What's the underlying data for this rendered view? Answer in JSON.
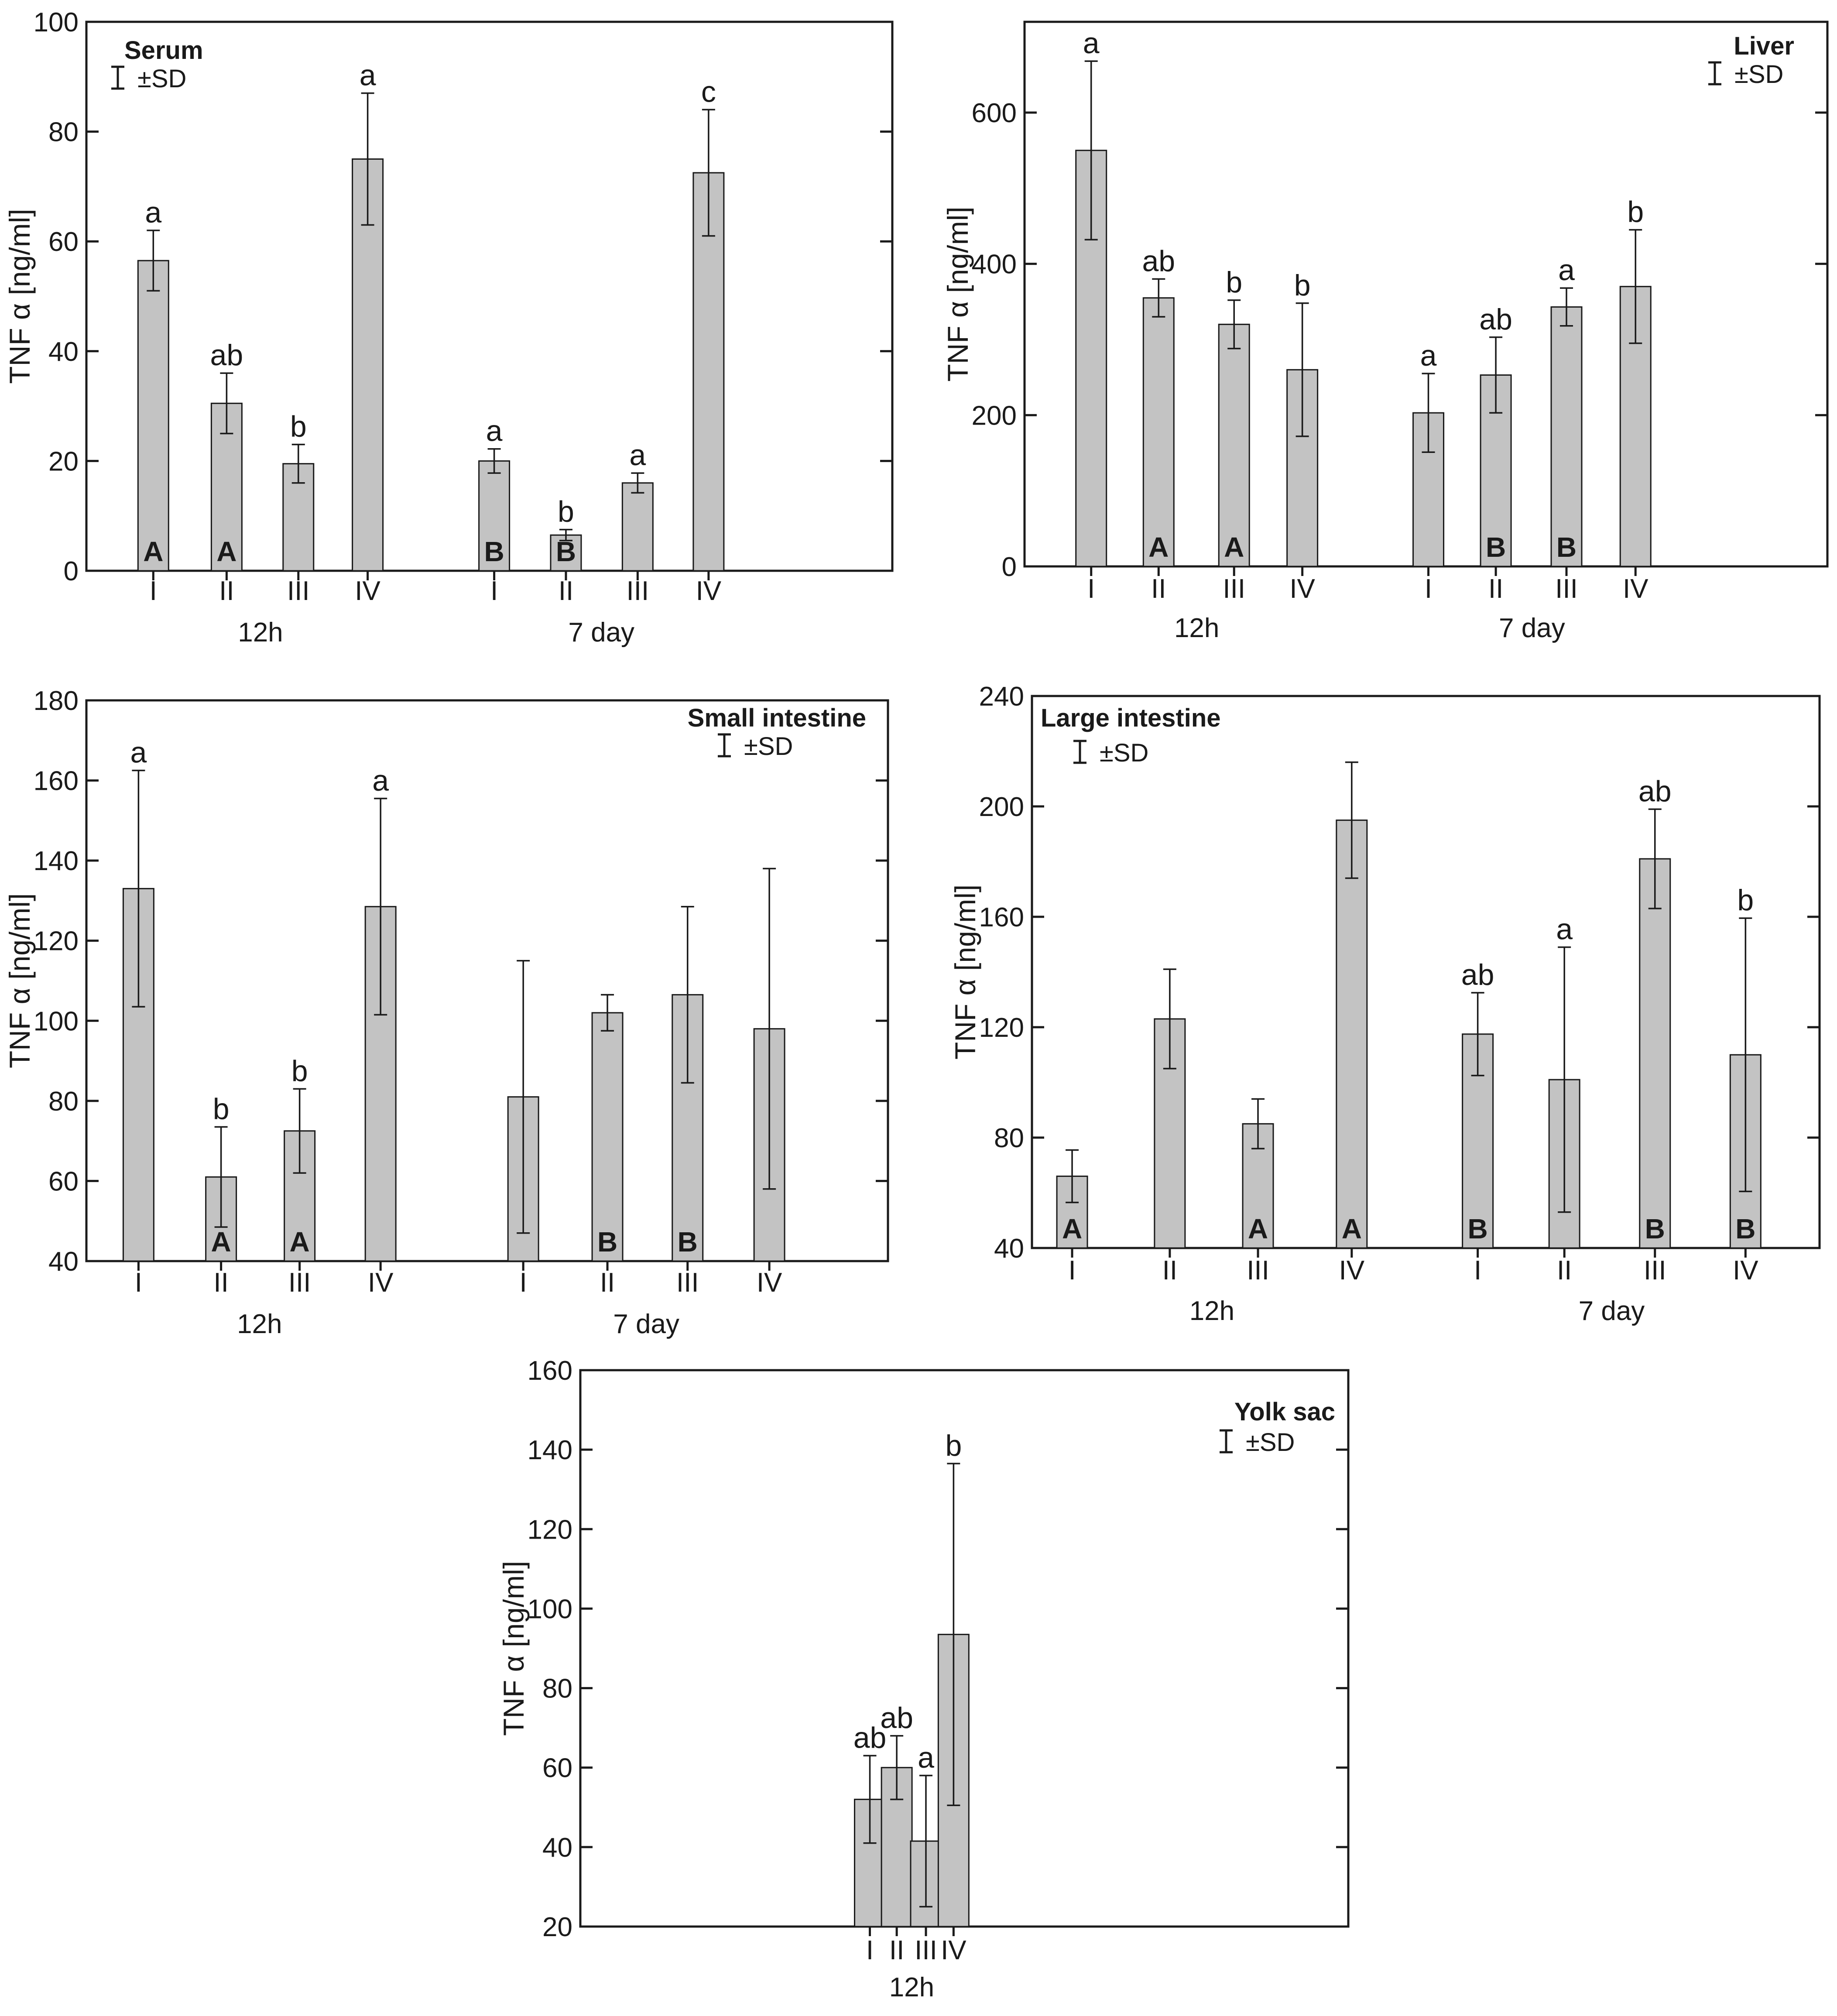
{
  "legend_sd_label": "±SD",
  "colors": {
    "bar_fill": "#c3c3c3",
    "stroke": "#1a1a1a",
    "background": "#ffffff"
  },
  "chart_data": [
    {
      "id": "serum",
      "type": "bar",
      "title": "Serum",
      "ylabel": "TNF α [ng/ml]",
      "ylim": [
        0,
        100
      ],
      "yticks": [
        0,
        20,
        40,
        60,
        80,
        100
      ],
      "groups": [
        {
          "label": "12h",
          "categories": [
            "I",
            "II",
            "III",
            "IV"
          ],
          "values": [
            56.5,
            30.5,
            19.5,
            75
          ],
          "sd": [
            5.5,
            5.5,
            3.5,
            12
          ],
          "letters": [
            "a",
            "ab",
            "b",
            "a"
          ],
          "caps": [
            "A",
            "A",
            "",
            ""
          ]
        },
        {
          "label": "7 day",
          "categories": [
            "I",
            "II",
            "III",
            "IV"
          ],
          "values": [
            20,
            6.5,
            16,
            72.5
          ],
          "sd": [
            2.2,
            1,
            1.8,
            11.5
          ],
          "letters": [
            "a",
            "b",
            "a",
            "c"
          ],
          "caps": [
            "B",
            "B",
            "",
            ""
          ]
        }
      ]
    },
    {
      "id": "liver",
      "type": "bar",
      "title": "Liver",
      "ylabel": "TNF α [ng/ml]",
      "ylim": [
        0,
        720
      ],
      "yticks": [
        0,
        200,
        400,
        600
      ],
      "groups": [
        {
          "label": "12h",
          "categories": [
            "I",
            "II",
            "III",
            "IV"
          ],
          "values": [
            550,
            355,
            320,
            260
          ],
          "sd": [
            118,
            25,
            32,
            88
          ],
          "letters": [
            "a",
            "ab",
            "b",
            "b"
          ],
          "caps": [
            "",
            "A",
            "A",
            ""
          ]
        },
        {
          "label": "7 day",
          "categories": [
            "I",
            "II",
            "III",
            "IV"
          ],
          "values": [
            203,
            253,
            343,
            370
          ],
          "sd": [
            52,
            50,
            25,
            75
          ],
          "letters": [
            "a",
            "ab",
            "a",
            "b"
          ],
          "caps": [
            "",
            "B",
            "B",
            ""
          ]
        }
      ]
    },
    {
      "id": "small-intestine",
      "type": "bar",
      "title": "Small intestine",
      "ylabel": "TNF α [ng/ml]",
      "ylim": [
        40,
        180
      ],
      "yticks": [
        40,
        60,
        80,
        100,
        120,
        140,
        160,
        180
      ],
      "groups": [
        {
          "label": "12h",
          "categories": [
            "I",
            "II",
            "III",
            "IV"
          ],
          "values": [
            133,
            61,
            72.5,
            128.5
          ],
          "sd": [
            29.5,
            12.5,
            10.5,
            27
          ],
          "letters": [
            "a",
            "b",
            "b",
            "a"
          ],
          "caps": [
            "",
            "A",
            "A",
            ""
          ]
        },
        {
          "label": "7 day",
          "categories": [
            "I",
            "II",
            "III",
            "IV"
          ],
          "values": [
            81,
            102,
            106.5,
            98
          ],
          "sd": [
            34,
            4.5,
            22,
            40
          ],
          "letters": [
            "",
            "",
            "",
            ""
          ],
          "caps": [
            "",
            "B",
            "B",
            ""
          ]
        }
      ]
    },
    {
      "id": "large-intestine",
      "type": "bar",
      "title": "Large intestine",
      "ylabel": "TNF α [ng/ml]",
      "ylim": [
        40,
        240
      ],
      "yticks": [
        40,
        80,
        120,
        160,
        200,
        240
      ],
      "groups": [
        {
          "label": "12h",
          "categories": [
            "I",
            "II",
            "III",
            "IV"
          ],
          "values": [
            66,
            123,
            85,
            195
          ],
          "sd": [
            9.5,
            18,
            9,
            21
          ],
          "letters": [
            "",
            "",
            "",
            ""
          ],
          "caps": [
            "A",
            "",
            "A",
            "A"
          ]
        },
        {
          "label": "7 day",
          "categories": [
            "I",
            "II",
            "III",
            "IV"
          ],
          "values": [
            117.5,
            101,
            181,
            110
          ],
          "sd": [
            15,
            48,
            18,
            49.5
          ],
          "letters": [
            "ab",
            "a",
            "ab",
            "b"
          ],
          "caps": [
            "B",
            "",
            "B",
            "B"
          ]
        }
      ]
    },
    {
      "id": "yolk-sac",
      "type": "bar",
      "title": "Yolk sac",
      "ylabel": "TNF α [ng/ml]",
      "ylim": [
        20,
        160
      ],
      "yticks": [
        20,
        40,
        60,
        80,
        100,
        120,
        140,
        160
      ],
      "groups": [
        {
          "label": "12h",
          "categories": [
            "I",
            "II",
            "III",
            "IV"
          ],
          "values": [
            52,
            60,
            41.5,
            93.5
          ],
          "sd": [
            11,
            8,
            16.5,
            43
          ],
          "letters": [
            "ab",
            "ab",
            "a",
            "b"
          ],
          "caps": [
            "",
            "",
            "",
            ""
          ]
        }
      ]
    }
  ]
}
